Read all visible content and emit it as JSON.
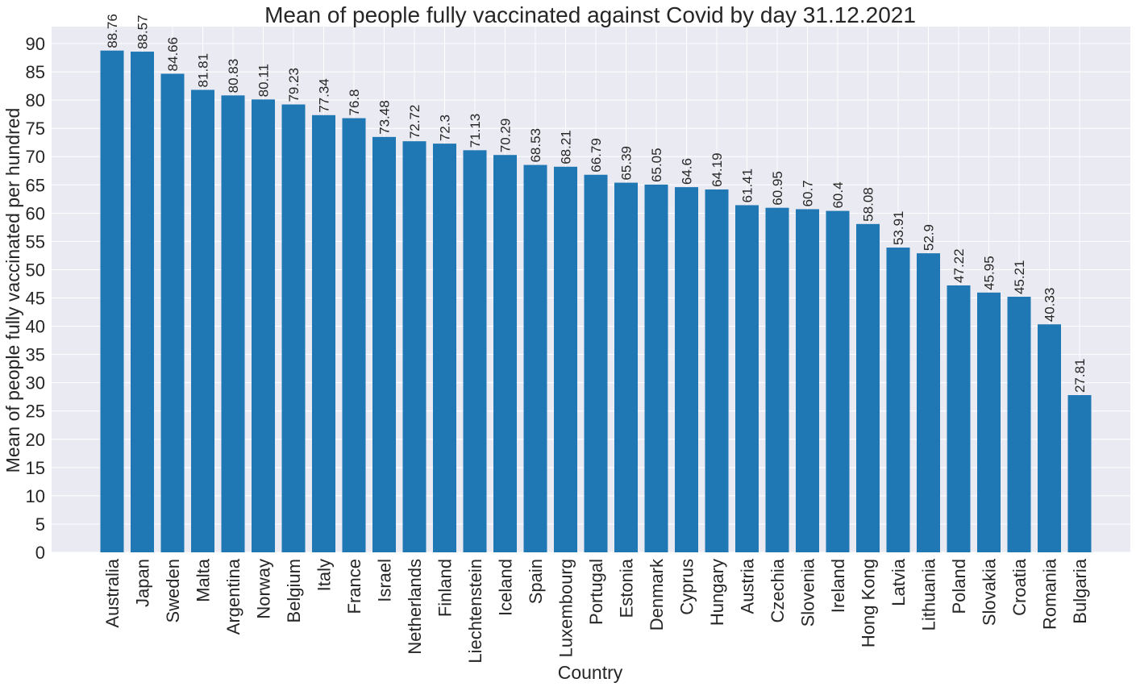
{
  "chart_data": {
    "type": "bar",
    "title": "Mean of people fully vaccinated against Covid by day 31.12.2021",
    "xlabel": "Country",
    "ylabel": "Mean of people fully vaccinated per hundred",
    "ylim": [
      0,
      93
    ],
    "yticks": [
      0,
      5,
      10,
      15,
      20,
      25,
      30,
      35,
      40,
      45,
      50,
      55,
      60,
      65,
      70,
      75,
      80,
      85,
      90
    ],
    "grid": true,
    "colors": {
      "bar": "#1f77b4",
      "background": "#eaeaf2",
      "grid": "#ffffff"
    },
    "categories": [
      "Australia",
      "Japan",
      "Sweden",
      "Malta",
      "Argentina",
      "Norway",
      "Belgium",
      "Italy",
      "France",
      "Israel",
      "Netherlands",
      "Finland",
      "Liechtenstein",
      "Iceland",
      "Spain",
      "Luxembourg",
      "Portugal",
      "Estonia",
      "Denmark",
      "Cyprus",
      "Hungary",
      "Austria",
      "Czechia",
      "Slovenia",
      "Ireland",
      "Hong Kong",
      "Latvia",
      "Lithuania",
      "Poland",
      "Slovakia",
      "Croatia",
      "Romania",
      "Bulgaria"
    ],
    "values": [
      88.76,
      88.57,
      84.66,
      81.81,
      80.83,
      80.11,
      79.23,
      77.34,
      76.8,
      73.48,
      72.72,
      72.3,
      71.13,
      70.29,
      68.53,
      68.21,
      66.79,
      65.39,
      65.05,
      64.6,
      64.19,
      61.41,
      60.95,
      60.7,
      60.4,
      58.08,
      53.91,
      52.9,
      47.22,
      45.95,
      45.21,
      40.33,
      27.81
    ],
    "labels": [
      "88.76",
      "88.57",
      "84.66",
      "81.81",
      "80.83",
      "80.11",
      "79.23",
      "77.34",
      "76.8",
      "73.48",
      "72.72",
      "72.3",
      "71.13",
      "70.29",
      "68.53",
      "68.21",
      "66.79",
      "65.39",
      "65.05",
      "64.6",
      "64.19",
      "61.41",
      "60.95",
      "60.7",
      "60.4",
      "58.08",
      "53.91",
      "52.9",
      "47.22",
      "45.95",
      "45.21",
      "40.33",
      "27.81"
    ]
  }
}
